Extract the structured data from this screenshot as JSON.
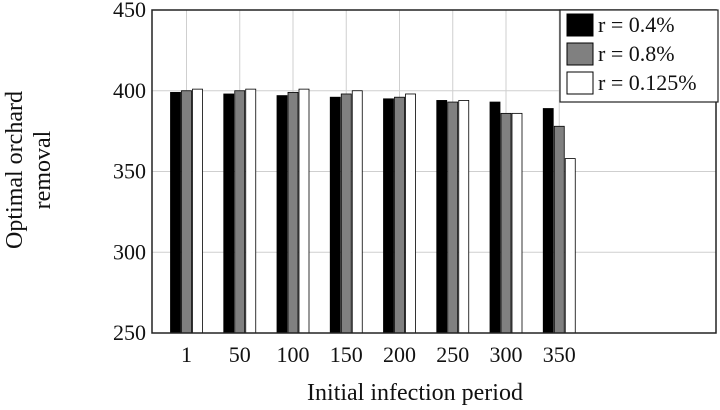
{
  "chart_data": {
    "type": "bar",
    "title": "",
    "xlabel": "Initial infection period",
    "ylabel": [
      "Optimal orchard",
      "removal"
    ],
    "categories": [
      "1",
      "50",
      "100",
      "150",
      "200",
      "250",
      "300",
      "350"
    ],
    "ylim": [
      250,
      450
    ],
    "yticks": [
      "250",
      "300",
      "350",
      "400",
      "450"
    ],
    "grid": true,
    "legend_position": "top-right",
    "series": [
      {
        "name": "r = 0.4%",
        "color": "#000000",
        "values": [
          399,
          398,
          397,
          396,
          395,
          394,
          393,
          389
        ]
      },
      {
        "name": "r = 0.8%",
        "color": "#808080",
        "values": [
          400,
          400,
          399,
          398,
          396,
          393,
          386,
          378
        ]
      },
      {
        "name": "r = 0.125%",
        "color": "#ffffff",
        "values": [
          401,
          401,
          401,
          400,
          398,
          394,
          386,
          358
        ]
      }
    ]
  }
}
